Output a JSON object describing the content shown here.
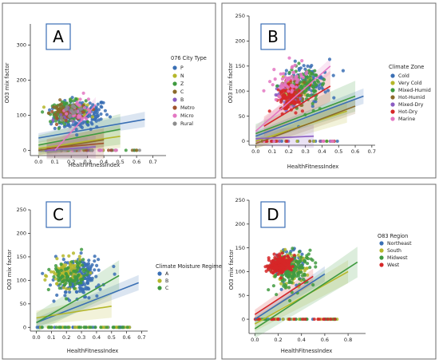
{
  "chart_data": [
    {
      "type": "scatter",
      "panel_label": "A",
      "xlabel": "HealthFitnessIndex",
      "ylabel": "O03 mix factor",
      "xlim": [
        -0.05,
        0.78
      ],
      "ylim": [
        -15,
        360
      ],
      "xticks": [
        "0.0",
        "0.1",
        "0.2",
        "0.3",
        "0.4",
        "0.5",
        "0.6",
        "0.7"
      ],
      "xtick_values": [
        0,
        0.1,
        0.2,
        0.3,
        0.4,
        0.5,
        0.6,
        0.7
      ],
      "yticks": [
        "0",
        "100",
        "200",
        "300"
      ],
      "ytick_values": [
        0,
        100,
        200,
        300
      ],
      "legend_title": "076 City Type",
      "legend_position": "right",
      "series": [
        {
          "name": "P",
          "color": "#3a6fb4",
          "line": [
            [
              0,
              35
            ],
            [
              0.65,
              88
            ]
          ],
          "cloud": {
            "cx": 0.26,
            "cy": 100,
            "sx": 0.14,
            "sy": 30,
            "n": 170
          }
        },
        {
          "name": "N",
          "color": "#b5b72a",
          "line": [
            [
              0,
              5
            ],
            [
              0.5,
              40
            ]
          ],
          "cloud": {
            "cx": 0.2,
            "cy": 115,
            "sx": 0.08,
            "sy": 18,
            "n": 60
          }
        },
        {
          "name": "Z",
          "color": "#3f9a3f",
          "line": [
            [
              0,
              15
            ],
            [
              0.5,
              60
            ]
          ],
          "cloud": {
            "cx": 0.18,
            "cy": 112,
            "sx": 0.09,
            "sy": 20,
            "n": 120
          }
        },
        {
          "name": "C",
          "color": "#8a6a2a",
          "line": [
            [
              0,
              0
            ],
            [
              0.4,
              30
            ]
          ],
          "cloud": {
            "cx": 0.15,
            "cy": 110,
            "sx": 0.07,
            "sy": 15,
            "n": 50
          }
        },
        {
          "name": "B",
          "color": "#8a5cc2",
          "line": [
            [
              0.05,
              0
            ],
            [
              0.35,
              10
            ]
          ],
          "cloud": {
            "cx": 0.2,
            "cy": 100,
            "sx": 0.07,
            "sy": 15,
            "n": 30
          }
        },
        {
          "name": "Metro",
          "color": "#a0522d",
          "line": [
            [
              0.05,
              5
            ],
            [
              0.4,
              20
            ]
          ],
          "cloud": {
            "cx": 0.22,
            "cy": 105,
            "sx": 0.08,
            "sy": 15,
            "n": 30
          }
        },
        {
          "name": "Micro",
          "color": "#e377c2",
          "line": [
            [
              0.1,
              0
            ],
            [
              0.35,
              130
            ]
          ],
          "cloud": {
            "cx": 0.25,
            "cy": 120,
            "sx": 0.07,
            "sy": 25,
            "n": 25
          }
        },
        {
          "name": "Rural",
          "color": "#8c8c8c",
          "line": [
            [
              0.05,
              -5
            ],
            [
              0.3,
              5
            ]
          ],
          "cloud": {
            "cx": 0.2,
            "cy": 110,
            "sx": 0.07,
            "sy": 15,
            "n": 20
          }
        }
      ],
      "zeros": {
        "min": 0,
        "max": 0.62,
        "n": 60
      }
    },
    {
      "type": "scatter",
      "panel_label": "B",
      "xlabel": "HealthFitnessIndex",
      "ylabel": "O03 mix factor",
      "xlim": [
        -0.04,
        0.72
      ],
      "ylim": [
        -8,
        250
      ],
      "xticks": [
        "0.0",
        "0.1",
        "0.2",
        "0.3",
        "0.4",
        "0.5",
        "0.6",
        "0.7"
      ],
      "xtick_values": [
        0,
        0.1,
        0.2,
        0.3,
        0.4,
        0.5,
        0.6,
        0.7
      ],
      "yticks": [
        "0",
        "50",
        "100",
        "150",
        "200",
        "250"
      ],
      "ytick_values": [
        0,
        50,
        100,
        150,
        200,
        250
      ],
      "legend_title": "Climate Zone",
      "legend_position": "right",
      "series": [
        {
          "name": "Cold",
          "color": "#3a6fb4",
          "line": [
            [
              0,
              10
            ],
            [
              0.65,
              90
            ]
          ],
          "cloud": {
            "cx": 0.3,
            "cy": 115,
            "sx": 0.12,
            "sy": 30,
            "n": 90
          }
        },
        {
          "name": "Very Cold",
          "color": "#b5b72a",
          "line": [
            [
              0,
              0
            ],
            [
              0.55,
              60
            ]
          ],
          "cloud": {
            "cx": 0.25,
            "cy": 110,
            "sx": 0.08,
            "sy": 20,
            "n": 30
          }
        },
        {
          "name": "Mixed-Humid",
          "color": "#3f9a3f",
          "line": [
            [
              0,
              15
            ],
            [
              0.6,
              90
            ]
          ],
          "cloud": {
            "cx": 0.3,
            "cy": 110,
            "sx": 0.1,
            "sy": 28,
            "n": 110
          }
        },
        {
          "name": "Hot-Humid",
          "color": "#8a6a2a",
          "line": [
            [
              0,
              -5
            ],
            [
              0.6,
              70
            ]
          ],
          "cloud": {
            "cx": 0.22,
            "cy": 95,
            "sx": 0.08,
            "sy": 20,
            "n": 60
          }
        },
        {
          "name": "Mixed-Dry",
          "color": "#8a5cc2",
          "line": [
            [
              0,
              5
            ],
            [
              0.35,
              10
            ]
          ],
          "cloud": {
            "cx": 0.2,
            "cy": 90,
            "sx": 0.06,
            "sy": 18,
            "n": 25
          }
        },
        {
          "name": "Hot-Dry",
          "color": "#d62728",
          "line": [
            [
              0.05,
              30
            ],
            [
              0.45,
              110
            ]
          ],
          "cloud": {
            "cx": 0.2,
            "cy": 90,
            "sx": 0.06,
            "sy": 20,
            "n": 110
          }
        },
        {
          "name": "Marine",
          "color": "#e377c2",
          "line": [
            [
              0,
              20
            ],
            [
              0.45,
              150
            ]
          ],
          "cloud": {
            "cx": 0.2,
            "cy": 120,
            "sx": 0.08,
            "sy": 25,
            "n": 60
          }
        }
      ],
      "zeros": {
        "min": 0,
        "max": 0.5,
        "n": 50
      }
    },
    {
      "type": "scatter",
      "panel_label": "C",
      "xlabel": "HealthFitnessIndex",
      "ylabel": "O03 mix factor",
      "xlim": [
        -0.04,
        0.74
      ],
      "ylim": [
        -8,
        250
      ],
      "xticks": [
        "0.0",
        "0.1",
        "0.2",
        "0.3",
        "0.4",
        "0.5",
        "0.6",
        "0.7"
      ],
      "xtick_values": [
        0,
        0.1,
        0.2,
        0.3,
        0.4,
        0.5,
        0.6,
        0.7
      ],
      "yticks": [
        "0",
        "50",
        "100",
        "150",
        "200",
        "250"
      ],
      "ytick_values": [
        0,
        50,
        100,
        150,
        200,
        250
      ],
      "legend_title": "Climate Moisture Regime",
      "legend_position": "right",
      "series": [
        {
          "name": "A",
          "color": "#3a6fb4",
          "line": [
            [
              0,
              10
            ],
            [
              0.68,
              95
            ]
          ],
          "cloud": {
            "cx": 0.28,
            "cy": 105,
            "sx": 0.12,
            "sy": 30,
            "n": 200
          }
        },
        {
          "name": "B",
          "color": "#b5b72a",
          "line": [
            [
              0,
              20
            ],
            [
              0.5,
              45
            ]
          ],
          "cloud": {
            "cx": 0.2,
            "cy": 115,
            "sx": 0.09,
            "sy": 20,
            "n": 110
          }
        },
        {
          "name": "C",
          "color": "#3f9a3f",
          "line": [
            [
              0,
              10
            ],
            [
              0.55,
              110
            ]
          ],
          "cloud": {
            "cx": 0.22,
            "cy": 110,
            "sx": 0.1,
            "sy": 22,
            "n": 80
          }
        }
      ],
      "zeros": {
        "min": 0,
        "max": 0.62,
        "n": 80
      }
    },
    {
      "type": "scatter",
      "panel_label": "D",
      "xlabel": "HealthFitnessIndex",
      "ylabel": "O03 mix factor",
      "xlim": [
        -0.05,
        0.95
      ],
      "ylim": [
        -30,
        250
      ],
      "xticks": [
        "0.0",
        "0.2",
        "0.4",
        "0.6",
        "0.8"
      ],
      "xtick_values": [
        0,
        0.2,
        0.4,
        0.6,
        0.8
      ],
      "yticks": [
        "0",
        "50",
        "100",
        "150",
        "200",
        "250"
      ],
      "ytick_values": [
        0,
        50,
        100,
        150,
        200,
        250
      ],
      "legend_title": "O83 Region",
      "legend_position": "right",
      "series": [
        {
          "name": "Northeast",
          "color": "#3a6fb4",
          "line": [
            [
              0,
              0
            ],
            [
              0.6,
              95
            ]
          ],
          "cloud": {
            "cx": 0.3,
            "cy": 110,
            "sx": 0.12,
            "sy": 25,
            "n": 70
          }
        },
        {
          "name": "South",
          "color": "#b5b72a",
          "line": [
            [
              0,
              -10
            ],
            [
              0.8,
              100
            ]
          ],
          "cloud": {
            "cx": 0.3,
            "cy": 105,
            "sx": 0.12,
            "sy": 22,
            "n": 80
          }
        },
        {
          "name": "Midwest",
          "color": "#3f9a3f",
          "line": [
            [
              0,
              -20
            ],
            [
              0.88,
              120
            ]
          ],
          "cloud": {
            "cx": 0.33,
            "cy": 105,
            "sx": 0.15,
            "sy": 28,
            "n": 150
          }
        },
        {
          "name": "West",
          "color": "#d62728",
          "line": [
            [
              0,
              10
            ],
            [
              0.5,
              90
            ]
          ],
          "cloud": {
            "cx": 0.22,
            "cy": 115,
            "sx": 0.08,
            "sy": 12,
            "n": 220
          }
        }
      ],
      "zeros": {
        "min": 0,
        "max": 0.72,
        "n": 80
      }
    }
  ]
}
